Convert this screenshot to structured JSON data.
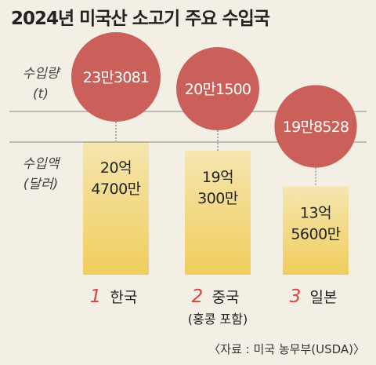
{
  "chart_data": {
    "type": "bar",
    "title": "2024년 미국산 소고기 주요 수입국",
    "series": [
      {
        "name": "수입량",
        "unit": "(t)",
        "labels": [
          "23만3081",
          "20만1500",
          "19만8528"
        ],
        "values": [
          233081,
          201500,
          198528
        ]
      },
      {
        "name": "수입액",
        "unit": "(달러)",
        "labels": [
          [
            "20억",
            "4700만"
          ],
          [
            "19억",
            "300만"
          ],
          [
            "13억",
            "5600만"
          ]
        ],
        "values": [
          2047000000,
          1903000000,
          1356000000
        ]
      }
    ],
    "categories": [
      {
        "rank": "1",
        "name": "한국",
        "sub": ""
      },
      {
        "rank": "2",
        "name": "중국",
        "sub": "(홍콩 포함)"
      },
      {
        "rank": "3",
        "name": "일본",
        "sub": ""
      }
    ],
    "source": "〈자료 : 미국 농무부(USDA)〉",
    "colors": {
      "background": "#f3efe4",
      "bar_top": "#f5e6b0",
      "bar_bottom": "#f0cd5c",
      "circle": "#cb605a",
      "rank": "#d9453e",
      "rule": "#888888"
    }
  }
}
